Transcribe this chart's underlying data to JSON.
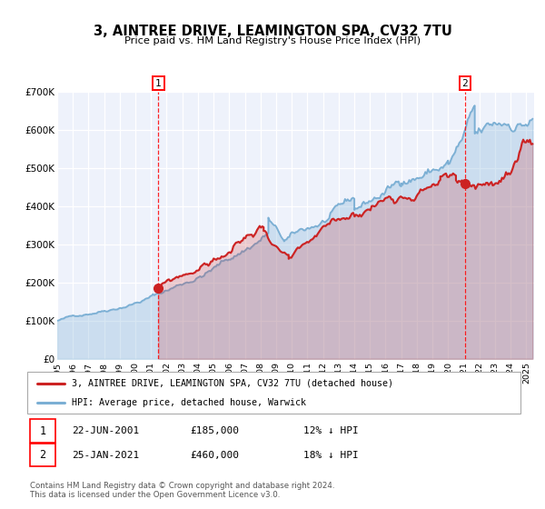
{
  "title": "3, AINTREE DRIVE, LEAMINGTON SPA, CV32 7TU",
  "subtitle": "Price paid vs. HM Land Registry's House Price Index (HPI)",
  "ylim": [
    0,
    700000
  ],
  "xlim_start": 1995.0,
  "xlim_end": 2025.5,
  "plot_background": "#eef2fb",
  "grid_color": "#ffffff",
  "hpi_color": "#7bafd4",
  "price_color": "#cc2222",
  "event1_x": 2001.47,
  "event1_y": 185000,
  "event2_x": 2021.07,
  "event2_y": 460000,
  "legend_line1": "3, AINTREE DRIVE, LEAMINGTON SPA, CV32 7TU (detached house)",
  "legend_line2": "HPI: Average price, detached house, Warwick",
  "ann1_date": "22-JUN-2001",
  "ann1_price": "£185,000",
  "ann1_hpi": "12% ↓ HPI",
  "ann2_date": "25-JAN-2021",
  "ann2_price": "£460,000",
  "ann2_hpi": "18% ↓ HPI",
  "footer": "Contains HM Land Registry data © Crown copyright and database right 2024.\nThis data is licensed under the Open Government Licence v3.0.",
  "yticks": [
    0,
    100000,
    200000,
    300000,
    400000,
    500000,
    600000,
    700000
  ],
  "ytick_labels": [
    "£0",
    "£100K",
    "£200K",
    "£300K",
    "£400K",
    "£500K",
    "£600K",
    "£700K"
  ]
}
